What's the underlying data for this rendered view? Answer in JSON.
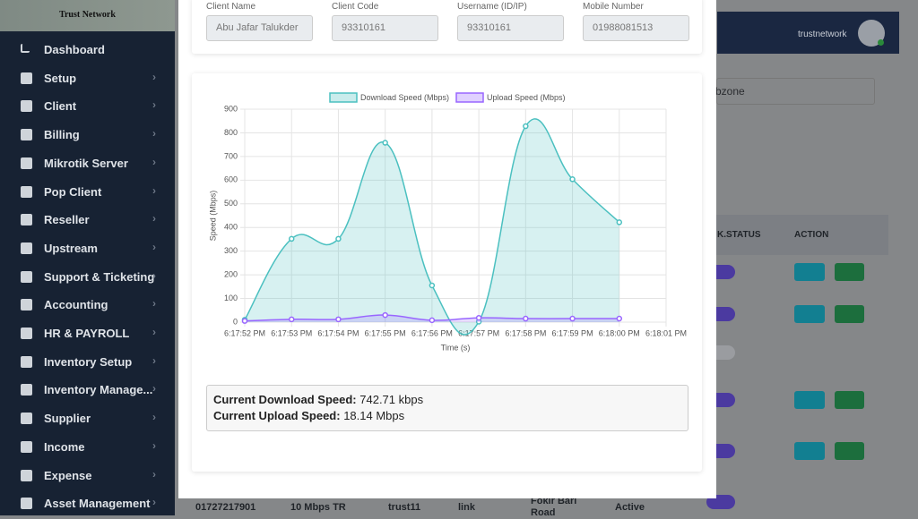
{
  "brand": "Trust Network",
  "menu": [
    "Dashboard",
    "Setup",
    "Client",
    "Billing",
    "Mikrotik Server",
    "Pop Client",
    "Reseller",
    "Upstream",
    "Support & Ticketing",
    "Accounting",
    "HR & PAYROLL",
    "Inventory Setup",
    "Inventory Manage...",
    "Supplier",
    "Income",
    "Expense",
    "Asset Management"
  ],
  "header": {
    "user": "trustnetwork"
  },
  "background": {
    "select": "bzone",
    "columns": [
      "K.STATUS",
      "ACTION"
    ],
    "last_row": [
      "01727217901",
      "10 Mbps TR",
      "trust11",
      "link",
      "Fokir Bari Road",
      "Active"
    ]
  },
  "fields": [
    {
      "label": "Client Name",
      "value": "Abu Jafar Talukder"
    },
    {
      "label": "Client Code",
      "value": "93310161"
    },
    {
      "label": "Username (ID/IP)",
      "value": "93310161"
    },
    {
      "label": "Mobile Number",
      "value": "01988081513"
    }
  ],
  "chart_data": {
    "type": "line",
    "categories": [
      "6:17:52 PM",
      "6:17:53 PM",
      "6:17:54 PM",
      "6:17:55 PM",
      "6:17:56 PM",
      "6:17:57 PM",
      "6:17:58 PM",
      "6:17:59 PM",
      "6:18:00 PM",
      "6:18:01 PM"
    ],
    "series": [
      {
        "name": "Download Speed (Mbps)",
        "color": "#4bc0c0",
        "values": [
          10,
          352,
          352,
          758,
          155,
          2,
          828,
          604,
          422,
          null
        ]
      },
      {
        "name": "Upload Speed (Mbps)",
        "color": "#9966ff",
        "values": [
          5,
          12,
          12,
          30,
          8,
          18,
          15,
          15,
          15,
          null
        ]
      }
    ],
    "ylim": [
      0,
      900
    ],
    "yticks": [
      0,
      100,
      200,
      300,
      400,
      500,
      600,
      700,
      800,
      900
    ],
    "xlabel": "Time (s)",
    "ylabel": "Speed (Mbps)",
    "grid": true,
    "legend": "top"
  },
  "current": {
    "download_label": "Current Download Speed:",
    "download_value": "742.71 kbps",
    "upload_label": "Current Upload Speed:",
    "upload_value": "18.14 Mbps"
  }
}
